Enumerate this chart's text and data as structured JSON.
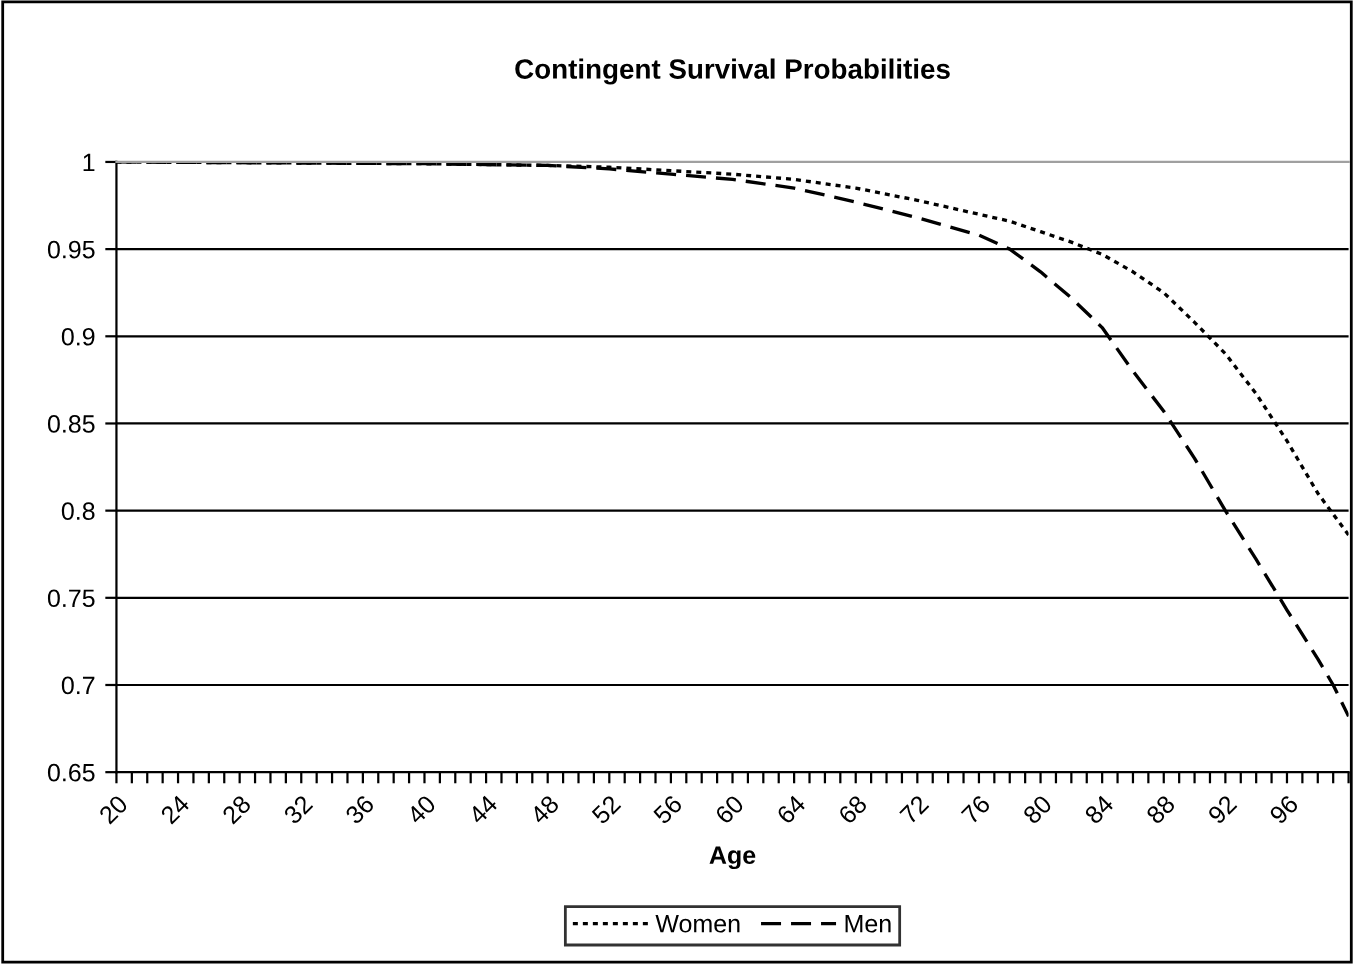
{
  "chart_data": {
    "type": "line",
    "title": "Contingent Survival Probabilities",
    "xlabel": "Age",
    "x": [
      20,
      40,
      48,
      52,
      56,
      60,
      64,
      68,
      72,
      76,
      78,
      80,
      82,
      84,
      86,
      88,
      90,
      92,
      94,
      96,
      98,
      99,
      100
    ],
    "series": [
      {
        "name": "Women",
        "color": "#000000",
        "line_style": "dotted",
        "values": [
          1.0,
          0.999,
          0.998,
          0.997,
          0.995,
          0.993,
          0.99,
          0.985,
          0.978,
          0.97,
          0.966,
          0.96,
          0.954,
          0.947,
          0.937,
          0.925,
          0.908,
          0.89,
          0.867,
          0.84,
          0.81,
          0.798,
          0.786
        ]
      },
      {
        "name": "Men",
        "color": "#000000",
        "line_style": "dashed",
        "values": [
          1.0,
          0.999,
          0.998,
          0.996,
          0.993,
          0.99,
          0.985,
          0.977,
          0.968,
          0.958,
          0.95,
          0.937,
          0.922,
          0.905,
          0.88,
          0.857,
          0.83,
          0.8,
          0.772,
          0.743,
          0.715,
          0.7,
          0.682
        ]
      }
    ],
    "xlim": [
      20,
      100
    ],
    "xticks": [
      20,
      {
        "value": 21,
        "label": null
      },
      {
        "value": 22,
        "label": null
      },
      {
        "value": 23,
        "label": null
      },
      24,
      {
        "value": 25,
        "label": null
      },
      {
        "value": 26,
        "label": null
      },
      {
        "value": 27,
        "label": null
      },
      28,
      {
        "value": 29,
        "label": null
      },
      {
        "value": 30,
        "label": null
      },
      {
        "value": 31,
        "label": null
      },
      32,
      {
        "value": 33,
        "label": null
      },
      {
        "value": 34,
        "label": null
      },
      {
        "value": 35,
        "label": null
      },
      36,
      {
        "value": 37,
        "label": null
      },
      {
        "value": 38,
        "label": null
      },
      {
        "value": 39,
        "label": null
      },
      40,
      {
        "value": 41,
        "label": null
      },
      {
        "value": 42,
        "label": null
      },
      {
        "value": 43,
        "label": null
      },
      44,
      {
        "value": 45,
        "label": null
      },
      {
        "value": 46,
        "label": null
      },
      {
        "value": 47,
        "label": null
      },
      48,
      {
        "value": 49,
        "label": null
      },
      {
        "value": 50,
        "label": null
      },
      {
        "value": 51,
        "label": null
      },
      52,
      {
        "value": 53,
        "label": null
      },
      {
        "value": 54,
        "label": null
      },
      {
        "value": 55,
        "label": null
      },
      56,
      {
        "value": 57,
        "label": null
      },
      {
        "value": 58,
        "label": null
      },
      {
        "value": 59,
        "label": null
      },
      60,
      {
        "value": 61,
        "label": null
      },
      {
        "value": 62,
        "label": null
      },
      {
        "value": 63,
        "label": null
      },
      64,
      {
        "value": 65,
        "label": null
      },
      {
        "value": 66,
        "label": null
      },
      {
        "value": 67,
        "label": null
      },
      68,
      {
        "value": 69,
        "label": null
      },
      {
        "value": 70,
        "label": null
      },
      {
        "value": 71,
        "label": null
      },
      72,
      {
        "value": 73,
        "label": null
      },
      {
        "value": 74,
        "label": null
      },
      {
        "value": 75,
        "label": null
      },
      76,
      {
        "value": 77,
        "label": null
      },
      {
        "value": 78,
        "label": null
      },
      {
        "value": 79,
        "label": null
      },
      80,
      {
        "value": 81,
        "label": null
      },
      {
        "value": 82,
        "label": null
      },
      {
        "value": 83,
        "label": null
      },
      84,
      {
        "value": 85,
        "label": null
      },
      {
        "value": 86,
        "label": null
      },
      {
        "value": 87,
        "label": null
      },
      88,
      {
        "value": 89,
        "label": null
      },
      {
        "value": 90,
        "label": null
      },
      {
        "value": 91,
        "label": null
      },
      92,
      {
        "value": 93,
        "label": null
      },
      {
        "value": 94,
        "label": null
      },
      {
        "value": 95,
        "label": null
      },
      96,
      {
        "value": 97,
        "label": null
      },
      {
        "value": 98,
        "label": null
      },
      {
        "value": 99,
        "label": null
      },
      {
        "value": 100,
        "label": null
      }
    ],
    "ylim": [
      0.65,
      1
    ],
    "yticks": [
      0.65,
      0.7,
      0.75,
      0.8,
      0.85,
      0.9,
      0.95,
      1
    ],
    "grid": "y",
    "legend": "bottom",
    "marker": "none"
  }
}
